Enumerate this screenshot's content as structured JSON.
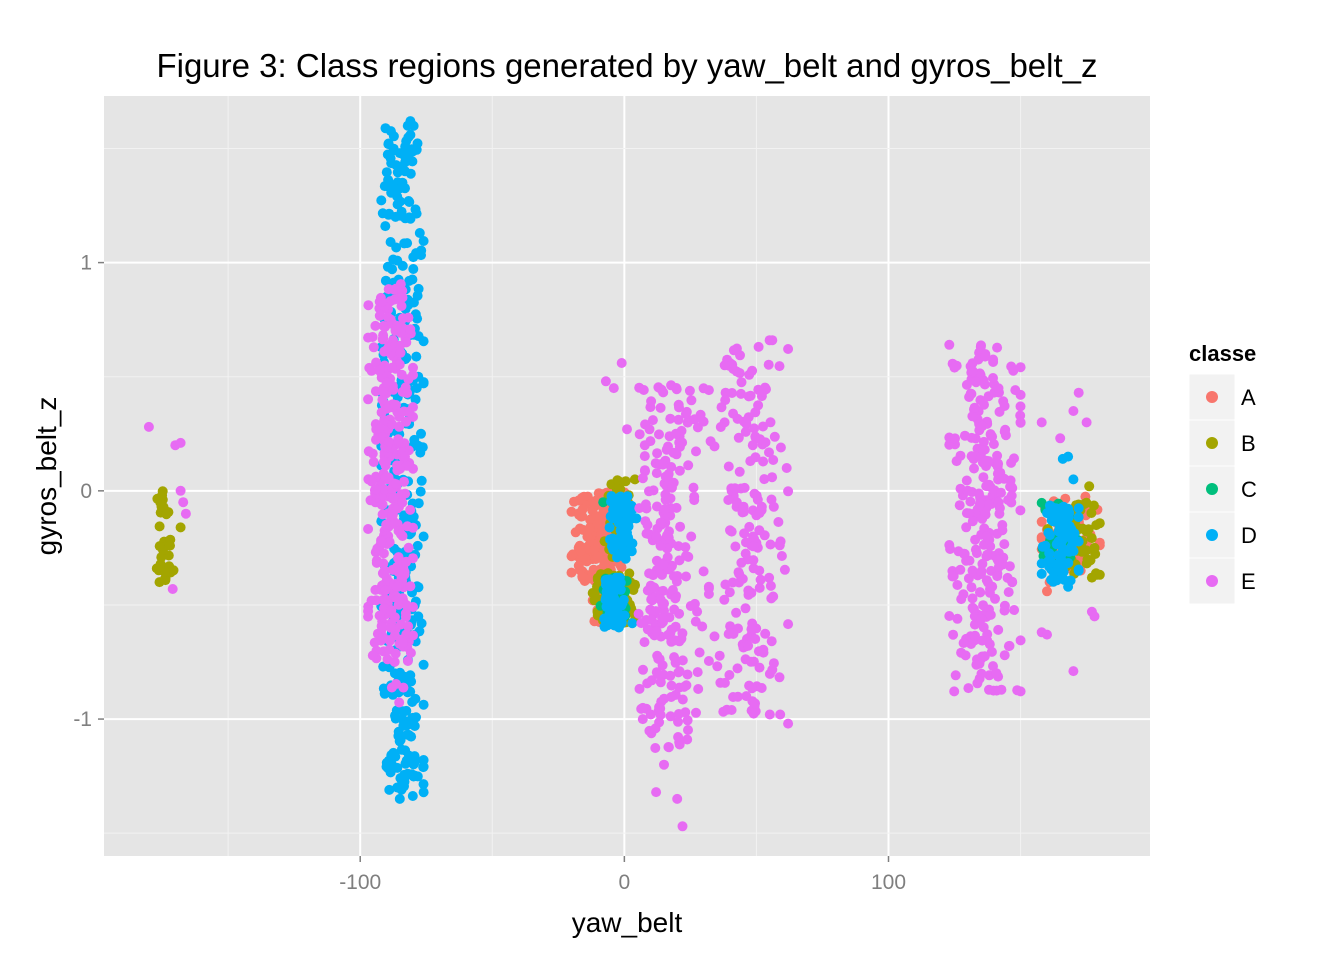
{
  "chart_data": {
    "type": "scatter",
    "title": "Figure 3: Class regions generated by yaw_belt and gyros_belt_z",
    "xlabel": "yaw_belt",
    "ylabel": "gyros_belt_z",
    "xlim": [
      -197,
      199
    ],
    "ylim": [
      -1.6,
      1.73
    ],
    "x_ticks": [
      -100,
      0,
      100
    ],
    "x_tick_labels": [
      "-100",
      "0",
      "100"
    ],
    "y_ticks": [
      -1,
      0,
      1
    ],
    "y_tick_labels": [
      "-1",
      "0",
      "1"
    ],
    "grid": true,
    "legend_title": "classe",
    "legend_position": "right",
    "colors": {
      "A": "#F8766D",
      "B": "#A3A500",
      "C": "#00BF7D",
      "D": "#00B0F6",
      "E": "#E76BF3"
    },
    "series": [
      {
        "name": "A",
        "clusters": [
          {
            "x": [
              -20,
              0
            ],
            "y": [
              -0.4,
              0.0
            ],
            "count": 180
          },
          {
            "x": [
              -12,
              -2
            ],
            "y": [
              -0.58,
              -0.45
            ],
            "count": 50
          },
          {
            "x": [
              158,
              180
            ],
            "y": [
              -0.35,
              -0.02
            ],
            "count": 80
          }
        ],
        "points": [
          [
            -10,
            -0.44
          ],
          [
            -12,
            -0.48
          ],
          [
            160,
            -0.44
          ],
          [
            161,
            -0.4
          ]
        ]
      },
      {
        "name": "B",
        "clusters": [
          {
            "x": [
              -178,
              -170
            ],
            "y": [
              -0.4,
              0.0
            ],
            "count": 26
          },
          {
            "x": [
              -12,
              4
            ],
            "y": [
              -0.58,
              -0.36
            ],
            "count": 100
          },
          {
            "x": [
              -8,
              2
            ],
            "y": [
              -0.3,
              0.05
            ],
            "count": 50
          },
          {
            "x": [
              160,
              180
            ],
            "y": [
              -0.38,
              -0.05
            ],
            "count": 60
          }
        ],
        "points": [
          [
            -177,
            -0.34
          ],
          [
            -176,
            -0.4
          ],
          [
            -175,
            -0.02
          ],
          [
            -172,
            -0.24
          ],
          [
            -168,
            -0.16
          ],
          [
            -10,
            -0.39
          ],
          [
            4,
            0.05
          ],
          [
            176,
            0.02
          ],
          [
            178,
            -0.25
          ],
          [
            177,
            -0.38
          ]
        ]
      },
      {
        "name": "C",
        "clusters": [
          {
            "x": [
              -9,
              2
            ],
            "y": [
              -0.55,
              -0.38
            ],
            "count": 40
          },
          {
            "x": [
              157,
              172
            ],
            "y": [
              -0.3,
              -0.05
            ],
            "count": 40
          }
        ],
        "points": [
          [
            -8,
            -0.05
          ],
          [
            168,
            -0.1
          ],
          [
            166,
            -0.2
          ],
          [
            162,
            -0.25
          ]
        ]
      },
      {
        "name": "D",
        "clusters": [
          {
            "x": [
              -92,
              -76
            ],
            "y": [
              -1.35,
              1.6
            ],
            "count": 360
          },
          {
            "x": [
              -6,
              5
            ],
            "y": [
              -0.3,
              -0.02
            ],
            "count": 80
          },
          {
            "x": [
              -8,
              0
            ],
            "y": [
              -0.6,
              -0.38
            ],
            "count": 70
          },
          {
            "x": [
              158,
              172
            ],
            "y": [
              -0.4,
              -0.05
            ],
            "count": 80
          }
        ],
        "points": [
          [
            -81,
            1.62
          ],
          [
            -82,
            1.6
          ],
          [
            -82,
            1.48
          ],
          [
            -83,
            1.4
          ],
          [
            -84,
            1.35
          ],
          [
            -85,
            -1.35
          ],
          [
            -86,
            -1.3
          ],
          [
            -88,
            -1.2
          ],
          [
            -84,
            -1.0
          ],
          [
            -78,
            0.5
          ],
          [
            -77,
            0.25
          ],
          [
            -76,
            -0.2
          ],
          [
            -78,
            -0.55
          ],
          [
            -79,
            -0.66
          ],
          [
            168,
            0.15
          ],
          [
            166,
            0.14
          ],
          [
            170,
            0.05
          ],
          [
            168,
            -0.42
          ],
          [
            172,
            -0.35
          ],
          [
            3,
            -0.58
          ]
        ]
      },
      {
        "name": "E",
        "clusters": [
          {
            "x": [
              -97,
              -80
            ],
            "y": [
              -0.75,
              0.9
            ],
            "count": 320
          },
          {
            "x": [
              -88,
              -82
            ],
            "y": [
              -0.95,
              0.95
            ],
            "count": 30
          },
          {
            "x": [
              5,
              30
            ],
            "y": [
              -1.15,
              0.48
            ],
            "count": 190
          },
          {
            "x": [
              5,
              20
            ],
            "y": [
              -0.65,
              0.2
            ],
            "count": 50
          },
          {
            "x": [
              32,
              62
            ],
            "y": [
              -1.0,
              0.66
            ],
            "count": 190
          },
          {
            "x": [
              123,
              150
            ],
            "y": [
              -0.88,
              0.64
            ],
            "count": 230
          },
          {
            "x": [
              130,
              150
            ],
            "y": [
              -0.7,
              0.2
            ],
            "count": 40
          }
        ],
        "points": [
          [
            -180,
            0.28
          ],
          [
            -170,
            0.2
          ],
          [
            -171,
            -0.43
          ],
          [
            -168,
            0.0
          ],
          [
            -167,
            -0.05
          ],
          [
            -166,
            -0.1
          ],
          [
            -168,
            0.21
          ],
          [
            -1,
            0.56
          ],
          [
            -7,
            0.48
          ],
          [
            -4,
            0.45
          ],
          [
            1,
            0.27
          ],
          [
            22,
            -1.47
          ],
          [
            20,
            -1.35
          ],
          [
            12,
            -1.32
          ],
          [
            15,
            -1.2
          ],
          [
            7,
            -1.0
          ],
          [
            10,
            -0.98
          ],
          [
            55,
            0.66
          ],
          [
            56,
            0.66
          ],
          [
            62,
            -1.02
          ],
          [
            59,
            -0.98
          ],
          [
            40,
            0.56
          ],
          [
            38,
            0.55
          ],
          [
            123,
            0.64
          ],
          [
            125,
            0.54
          ],
          [
            158,
            0.3
          ],
          [
            150,
            0.3
          ],
          [
            172,
            0.43
          ],
          [
            170,
            0.35
          ],
          [
            175,
            0.3
          ],
          [
            177,
            -0.53
          ],
          [
            178,
            -0.55
          ],
          [
            158,
            -0.62
          ],
          [
            160,
            -0.63
          ],
          [
            170,
            -0.79
          ],
          [
            144,
            -0.72
          ],
          [
            165,
            0.23
          ]
        ]
      }
    ]
  }
}
